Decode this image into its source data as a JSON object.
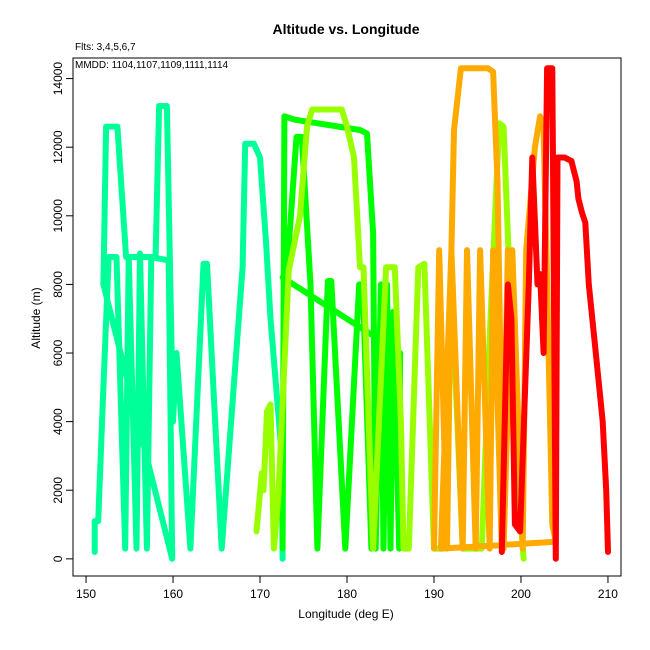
{
  "chart_data": {
    "type": "line",
    "title": "Altitude vs. Longitude",
    "annotations": [
      "Flts: 3,4,5,6,7",
      "MMDD: 1104,1107,1109,1111,1114"
    ],
    "xlabel": "Longitude (deg E)",
    "ylabel": "Altitude (m)",
    "xlim": [
      148.5,
      211.5
    ],
    "ylim": [
      -500,
      14600
    ],
    "xticks": [
      150,
      160,
      170,
      180,
      190,
      200,
      210
    ],
    "yticks": [
      0,
      2000,
      4000,
      6000,
      8000,
      10000,
      12000,
      14000
    ],
    "grid": false,
    "series": [
      {
        "color": "#00FF99",
        "points": [
          [
            151.0,
            200
          ],
          [
            151.0,
            1100
          ],
          [
            151.4,
            1100
          ],
          [
            152.0,
            5000
          ],
          [
            152.6,
            8800
          ],
          [
            153.5,
            8800
          ],
          [
            154.5,
            300
          ],
          [
            154.9,
            8800
          ],
          [
            155.8,
            300
          ],
          [
            156.2,
            8900
          ],
          [
            157.0,
            300
          ],
          [
            157.5,
            8800
          ],
          [
            159.5,
            8700
          ],
          [
            159.9,
            0
          ],
          [
            152.0,
            8000
          ],
          [
            152.3,
            12600
          ],
          [
            153.6,
            12600
          ],
          [
            154.6,
            8800
          ],
          [
            158.0,
            8800
          ],
          [
            158.4,
            13200
          ],
          [
            159.3,
            13200
          ],
          [
            160.0,
            4000
          ],
          [
            160.4,
            6000
          ],
          [
            162.0,
            300
          ],
          [
            163.5,
            8600
          ],
          [
            163.9,
            8600
          ],
          [
            165.6,
            300
          ],
          [
            168.0,
            8500
          ],
          [
            168.3,
            12100
          ],
          [
            169.3,
            12100
          ],
          [
            170.0,
            11700
          ],
          [
            170.7,
            9200
          ],
          [
            171.2,
            7000
          ],
          [
            172.5,
            3000
          ],
          [
            172.6,
            0
          ]
        ]
      },
      {
        "color": "#00FF00",
        "points": [
          [
            172.6,
            300
          ],
          [
            172.8,
            12900
          ],
          [
            174.0,
            12800
          ],
          [
            181.5,
            12500
          ],
          [
            182.3,
            12400
          ],
          [
            183.0,
            9500
          ],
          [
            183.3,
            300
          ],
          [
            183.9,
            8000
          ],
          [
            184.2,
            300
          ],
          [
            184.6,
            8000
          ],
          [
            185.0,
            300
          ],
          [
            185.3,
            7200
          ],
          [
            186.0,
            300
          ],
          [
            186.1,
            6000
          ],
          [
            172.6,
            8200
          ],
          [
            173.1,
            8400
          ],
          [
            174.2,
            12300
          ],
          [
            174.8,
            12300
          ],
          [
            175.8,
            8000
          ],
          [
            176.6,
            300
          ],
          [
            177.8,
            8100
          ],
          [
            178.2,
            8100
          ],
          [
            179.8,
            300
          ],
          [
            181.4,
            8000
          ],
          [
            181.8,
            8000
          ],
          [
            182.8,
            300
          ]
        ]
      },
      {
        "color": "#99FF00",
        "points": [
          [
            169.6,
            800
          ],
          [
            170.2,
            2500
          ],
          [
            170.4,
            2000
          ],
          [
            170.8,
            4300
          ],
          [
            171.2,
            4500
          ],
          [
            171.6,
            300
          ],
          [
            172.1,
            1800
          ],
          [
            173.3,
            8400
          ],
          [
            174.6,
            10000
          ],
          [
            175.4,
            12600
          ],
          [
            176.0,
            13100
          ],
          [
            177.6,
            13100
          ],
          [
            179.4,
            13100
          ],
          [
            180.0,
            12600
          ],
          [
            180.8,
            11700
          ],
          [
            181.2,
            9900
          ],
          [
            181.5,
            8500
          ],
          [
            181.9,
            8500
          ],
          [
            182.5,
            4000
          ],
          [
            183.0,
            300
          ],
          [
            184.5,
            8500
          ],
          [
            185.5,
            8500
          ],
          [
            186.2,
            4000
          ],
          [
            186.5,
            300
          ],
          [
            187.1,
            300
          ],
          [
            188.2,
            8500
          ],
          [
            188.9,
            8600
          ],
          [
            190.0,
            300
          ],
          [
            191.1,
            300
          ],
          [
            192.0,
            8000
          ],
          [
            193.3,
            300
          ],
          [
            195.5,
            300
          ],
          [
            196.5,
            7000
          ],
          [
            197.5,
            12700
          ],
          [
            198.0,
            12600
          ],
          [
            199.5,
            3000
          ],
          [
            200.3,
            0
          ]
        ]
      },
      {
        "color": "#FFAA00",
        "points": [
          [
            190.0,
            300
          ],
          [
            190.6,
            9000
          ],
          [
            191.5,
            300
          ],
          [
            192.0,
            9000
          ],
          [
            192.3,
            12500
          ],
          [
            193.1,
            14300
          ],
          [
            194.8,
            14300
          ],
          [
            196.2,
            14300
          ],
          [
            196.8,
            14200
          ],
          [
            197.3,
            11000
          ],
          [
            198.0,
            300
          ],
          [
            199.0,
            9000
          ],
          [
            200.2,
            300
          ],
          [
            200.6,
            9000
          ],
          [
            201.6,
            12000
          ],
          [
            202.2,
            12900
          ],
          [
            202.6,
            12500
          ],
          [
            203.0,
            8000
          ],
          [
            203.6,
            1000
          ],
          [
            204.0,
            500
          ],
          [
            190.8,
            300
          ],
          [
            192.0,
            9000
          ],
          [
            193.3,
            300
          ],
          [
            193.8,
            9000
          ],
          [
            194.8,
            300
          ],
          [
            195.3,
            9000
          ],
          [
            196.4,
            300
          ],
          [
            196.8,
            9000
          ],
          [
            197.8,
            300
          ],
          [
            198.5,
            9000
          ]
        ]
      },
      {
        "color": "#FF0000",
        "points": [
          [
            197.8,
            200
          ],
          [
            198.5,
            8000
          ],
          [
            198.9,
            7000
          ],
          [
            199.3,
            1000
          ],
          [
            199.9,
            800
          ],
          [
            200.9,
            8000
          ],
          [
            201.3,
            11700
          ],
          [
            201.9,
            8000
          ],
          [
            202.2,
            8300
          ],
          [
            202.6,
            6000
          ],
          [
            203.0,
            14300
          ],
          [
            203.6,
            14300
          ],
          [
            204.0,
            0
          ],
          [
            204.2,
            11700
          ],
          [
            205.0,
            11700
          ],
          [
            205.8,
            11600
          ],
          [
            206.4,
            11000
          ],
          [
            206.6,
            10500
          ],
          [
            207.0,
            10100
          ],
          [
            207.4,
            9800
          ],
          [
            207.8,
            8000
          ],
          [
            208.6,
            6000
          ],
          [
            209.4,
            4000
          ],
          [
            209.8,
            2000
          ],
          [
            210.0,
            200
          ]
        ]
      }
    ]
  }
}
